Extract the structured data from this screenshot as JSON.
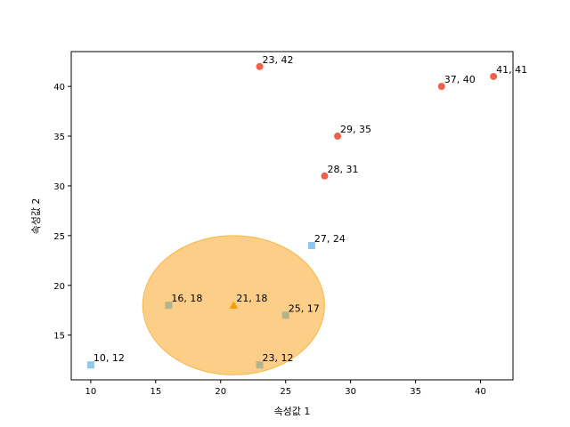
{
  "chart_data": {
    "type": "scatter",
    "title": "",
    "xlabel": "속성값 1",
    "ylabel": "속성값 2",
    "xlim": [
      8.5,
      42.5
    ],
    "ylim": [
      10.5,
      43.5
    ],
    "xticks": [
      10,
      15,
      20,
      25,
      30,
      35,
      40
    ],
    "yticks": [
      15,
      20,
      25,
      30,
      35,
      40
    ],
    "grid": false,
    "series": [
      {
        "marker": "circle",
        "color": "#f0604a",
        "points": [
          [
            23,
            42
          ],
          [
            41,
            41
          ],
          [
            37,
            40
          ],
          [
            29,
            35
          ],
          [
            28,
            31
          ]
        ]
      },
      {
        "marker": "square",
        "color": "#8ec8f0",
        "points": [
          [
            27,
            24
          ],
          [
            10,
            12
          ]
        ]
      },
      {
        "marker": "square",
        "color": "#b4b48c",
        "points": [
          [
            16,
            18
          ],
          [
            25,
            17
          ],
          [
            23,
            12
          ]
        ]
      },
      {
        "marker": "triangle",
        "color": "#f5a000",
        "points": [
          [
            21,
            18
          ]
        ]
      }
    ],
    "point_labels": [
      "23, 42",
      "41, 41",
      "37, 40",
      "29, 35",
      "28, 31",
      "27, 24",
      "16, 18",
      "21, 18",
      "25, 17",
      "10, 12",
      "23, 12"
    ],
    "ellipse": {
      "center": [
        21,
        18
      ],
      "rx": 7,
      "ry": 7,
      "fill": "#fdc97a",
      "stroke": "#f5b84a"
    }
  }
}
